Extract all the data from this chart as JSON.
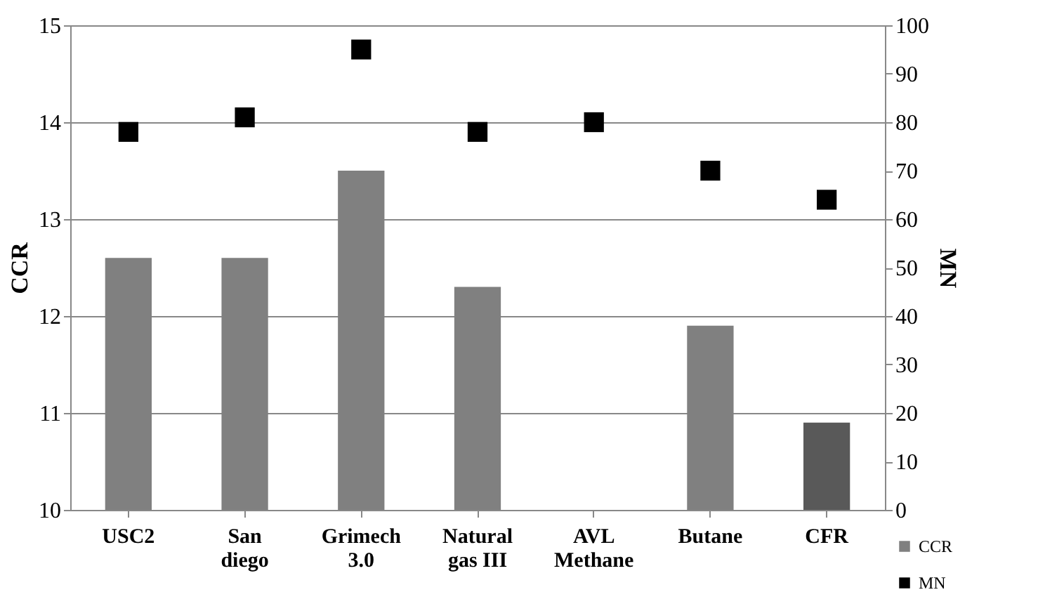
{
  "chart_data": {
    "type": "bar",
    "categories": [
      "USC2",
      "San diego",
      "Grimech 3.0",
      "Natural gas III",
      "AVL Methane",
      "Butane",
      "CFR"
    ],
    "ylabel": "CCR",
    "y2label": "MN",
    "series": [
      {
        "name": "CCR",
        "color": "#808080",
        "colors": [
          "#808080",
          "#808080",
          "#808080",
          "#808080",
          "#808080",
          "#808080",
          "#595959"
        ],
        "values": [
          12.6,
          12.6,
          13.5,
          12.3,
          null,
          11.9,
          10.9
        ]
      },
      {
        "name": "MN",
        "type": "scatter",
        "axis": "y2",
        "marker": "square",
        "color": "#000000",
        "values": [
          78,
          81,
          95,
          78,
          80,
          70,
          64
        ]
      }
    ],
    "ylim": [
      10,
      15
    ],
    "yticks": [
      10,
      11,
      12,
      13,
      14,
      15
    ],
    "y2lim": [
      0,
      100
    ],
    "y2ticks": [
      0,
      10,
      20,
      30,
      40,
      50,
      60,
      70,
      80,
      90,
      100
    ],
    "grid": "y",
    "legend": "bottom right"
  }
}
